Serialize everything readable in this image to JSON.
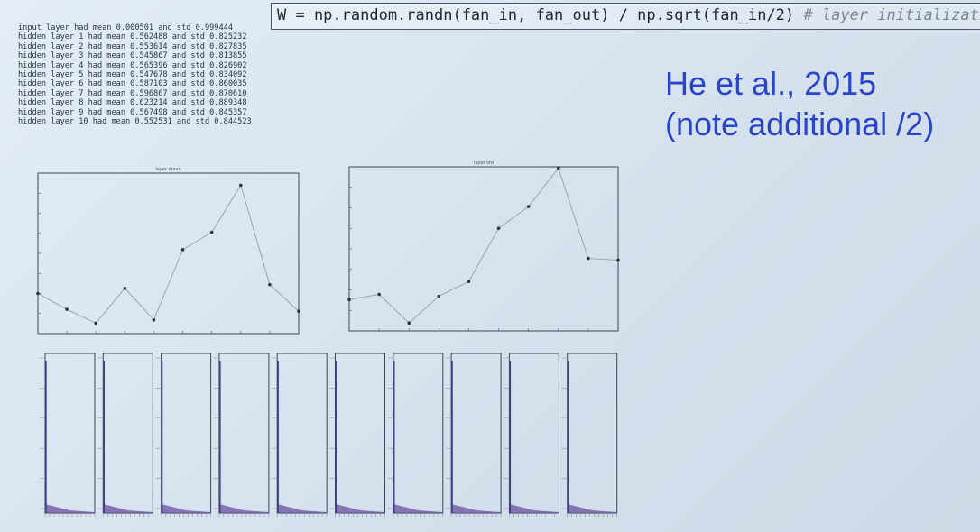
{
  "code": {
    "expr": "W = np.random.randn(fan_in, fan_out) / np.sqrt(fan_in/2) ",
    "comment": "# layer initialization"
  },
  "stats_log": [
    "input layer had mean 0.000501 and std 0.999444",
    "hidden layer 1 had mean 0.562488 and std 0.825232",
    "hidden layer 2 had mean 0.553614 and std 0.827835",
    "hidden layer 3 had mean 0.545867 and std 0.813855",
    "hidden layer 4 had mean 0.565396 and std 0.826902",
    "hidden layer 5 had mean 0.547678 and std 0.834092",
    "hidden layer 6 had mean 0.587103 and std 0.860035",
    "hidden layer 7 had mean 0.596867 and std 0.870610",
    "hidden layer 8 had mean 0.623214 and std 0.889348",
    "hidden layer 9 had mean 0.567498 and std 0.845357",
    "hidden layer 10 had mean 0.552531 and std 0.844523"
  ],
  "annotation": {
    "line1": "He et al., 2015",
    "line2": "(note additional /2)"
  },
  "chart_data": [
    {
      "type": "line",
      "title": "layer mean",
      "x": [
        1,
        2,
        3,
        4,
        5,
        6,
        7,
        8,
        9,
        10
      ],
      "y": [
        0.562488,
        0.553614,
        0.545867,
        0.565396,
        0.547678,
        0.587103,
        0.596867,
        0.623214,
        0.567498,
        0.552531
      ],
      "ylim": [
        0.54,
        0.63
      ],
      "line_color": "#9aa4ae",
      "marker_color": "#2c3440"
    },
    {
      "type": "line",
      "title": "layer std",
      "x": [
        1,
        2,
        3,
        4,
        5,
        6,
        7,
        8,
        9,
        10
      ],
      "y": [
        0.825232,
        0.827835,
        0.813855,
        0.826902,
        0.834092,
        0.860035,
        0.87061,
        0.889348,
        0.845357,
        0.844523
      ],
      "ylim": [
        0.81,
        0.89
      ],
      "line_color": "#9aa4ae",
      "marker_color": "#2c3440"
    },
    {
      "type": "bar",
      "title": "",
      "description_panels": 10,
      "fill_color": "#6b4fa0"
    }
  ]
}
